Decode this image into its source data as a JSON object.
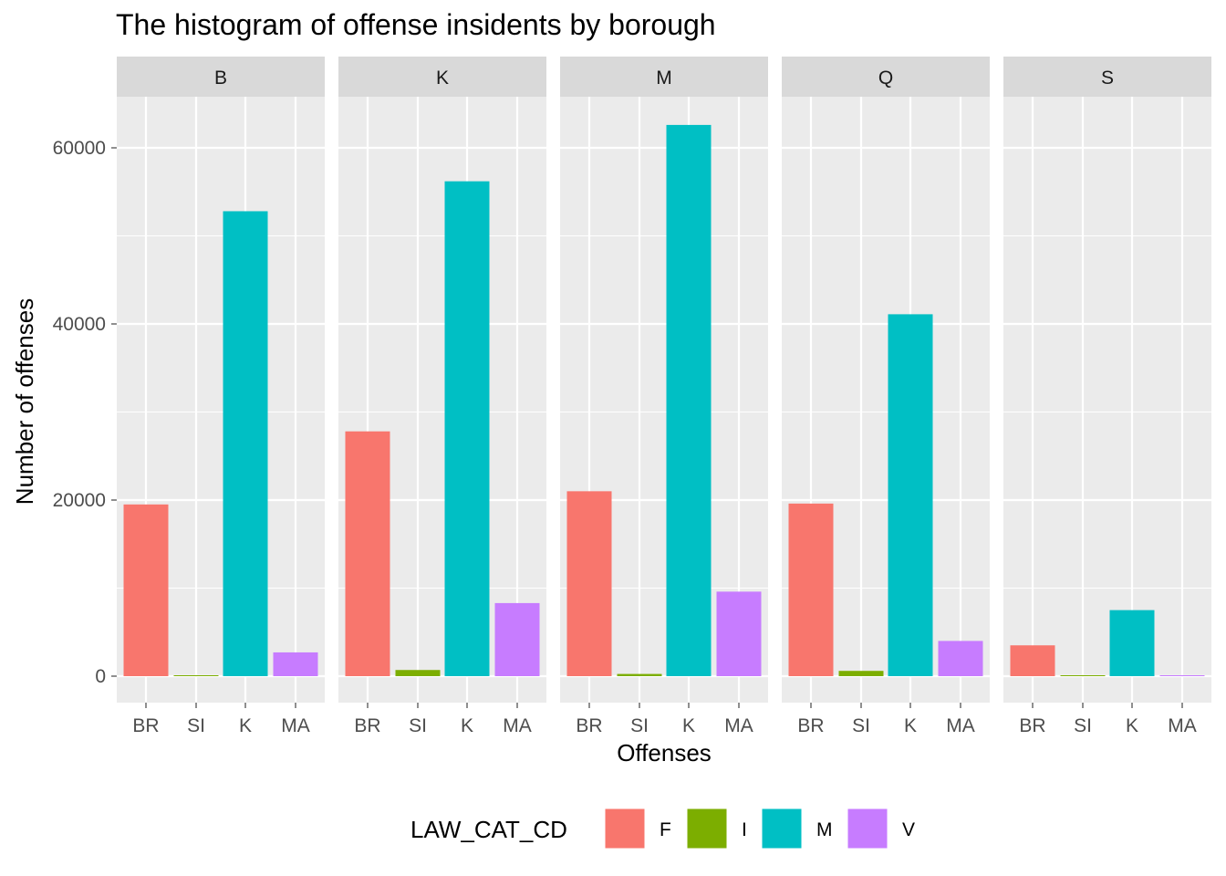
{
  "chart_data": {
    "type": "bar",
    "title": "The histogram of offense insidents by borough",
    "xlabel": "Offenses",
    "ylabel": "Number of offenses",
    "facet_variable": "borough",
    "panels": [
      "B",
      "K",
      "M",
      "Q",
      "S"
    ],
    "categories": [
      "BR",
      "SI",
      "K",
      "MA"
    ],
    "category_fill": [
      "F",
      "I",
      "M",
      "V"
    ],
    "values": {
      "B": [
        19500,
        100,
        52800,
        2700
      ],
      "K": [
        27800,
        700,
        56200,
        8300
      ],
      "M": [
        21000,
        250,
        62600,
        9600
      ],
      "Q": [
        19600,
        600,
        41100,
        4000
      ],
      "S": [
        3500,
        20,
        7500,
        20
      ]
    },
    "ylim": [
      -3000,
      68500
    ],
    "yticks": [
      0,
      20000,
      40000,
      60000
    ],
    "grid": true,
    "legend": {
      "title": "LAW_CAT_CD",
      "position": "bottom",
      "entries": [
        {
          "key": "F",
          "color": "#F8766D"
        },
        {
          "key": "I",
          "color": "#7CAE00"
        },
        {
          "key": "M",
          "color": "#00BFC4"
        },
        {
          "key": "V",
          "color": "#C77CFF"
        }
      ]
    },
    "colors": {
      "panel_background": "#ebebeb",
      "grid": "#ffffff",
      "strip_background": "#d9d9d9"
    }
  }
}
